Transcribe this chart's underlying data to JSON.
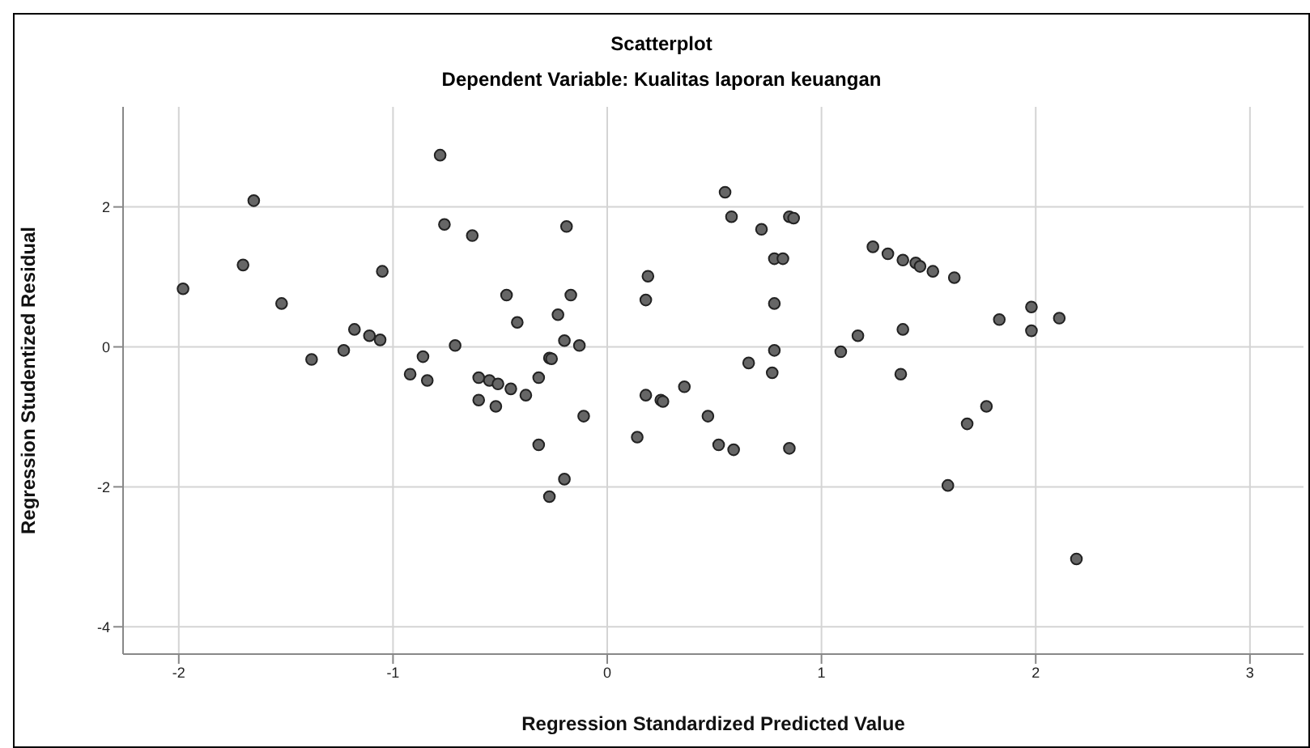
{
  "chart_data": {
    "type": "scatter",
    "title": "Scatterplot",
    "subtitle": "Dependent Variable: Kualitas laporan keuangan",
    "xlabel": "Regression Standardized Predicted Value",
    "ylabel": "Regression Studentized Residual",
    "xlim": [
      -2.26,
      3.25
    ],
    "xticks": [
      -2,
      -1,
      0,
      1,
      2,
      3
    ],
    "ylim": [
      -4.39,
      3.43
    ],
    "yticks": [
      -4,
      -2,
      0,
      2
    ],
    "grid": true,
    "marker": "circle",
    "series": [
      {
        "color": "#666666",
        "x": [
          -1.98,
          -1.65,
          -1.7,
          -1.52,
          -1.38,
          -1.23,
          -1.18,
          -1.11,
          -1.06,
          -1.05,
          -0.78,
          -0.76,
          -0.63,
          -0.86,
          -0.92,
          -0.84,
          -0.71,
          -0.6,
          -0.55,
          -0.51,
          -0.45,
          -0.38,
          -0.6,
          -0.52,
          -0.47,
          -0.42,
          -0.32,
          -0.27,
          -0.26,
          -0.23,
          -0.2,
          -0.19,
          -0.17,
          -0.13,
          -0.11,
          -0.32,
          -0.2,
          -0.27,
          0.55,
          0.58,
          0.72,
          0.85,
          0.87,
          0.78,
          0.82,
          0.19,
          0.18,
          0.78,
          0.78,
          0.66,
          0.77,
          0.18,
          0.25,
          0.26,
          0.36,
          0.14,
          0.47,
          0.52,
          0.59,
          0.85,
          1.24,
          1.31,
          1.38,
          1.44,
          1.46,
          1.52,
          1.62,
          1.09,
          1.17,
          1.38,
          1.37,
          1.83,
          1.98,
          1.98,
          2.11,
          1.77,
          1.68,
          1.59,
          2.19
        ],
        "values": [
          0.83,
          2.09,
          1.17,
          0.62,
          -0.18,
          -0.05,
          0.25,
          0.16,
          0.1,
          1.08,
          2.74,
          1.75,
          1.59,
          -0.14,
          -0.39,
          -0.48,
          0.02,
          -0.44,
          -0.48,
          -0.53,
          -0.6,
          -0.69,
          -0.76,
          -0.85,
          0.74,
          0.35,
          -0.44,
          -0.16,
          -0.17,
          0.46,
          0.09,
          1.72,
          0.74,
          0.02,
          -0.99,
          -1.4,
          -1.89,
          -2.14,
          2.21,
          1.86,
          1.68,
          1.86,
          1.84,
          1.26,
          1.26,
          1.01,
          0.67,
          0.62,
          -0.05,
          -0.23,
          -0.37,
          -0.69,
          -0.76,
          -0.78,
          -0.57,
          -1.29,
          -0.99,
          -1.4,
          -1.47,
          -1.45,
          1.43,
          1.33,
          1.24,
          1.2,
          1.15,
          1.08,
          0.99,
          -0.07,
          0.16,
          0.25,
          -0.39,
          0.39,
          0.57,
          0.23,
          0.41,
          -0.85,
          -1.1,
          -1.98,
          -3.03
        ]
      }
    ]
  }
}
